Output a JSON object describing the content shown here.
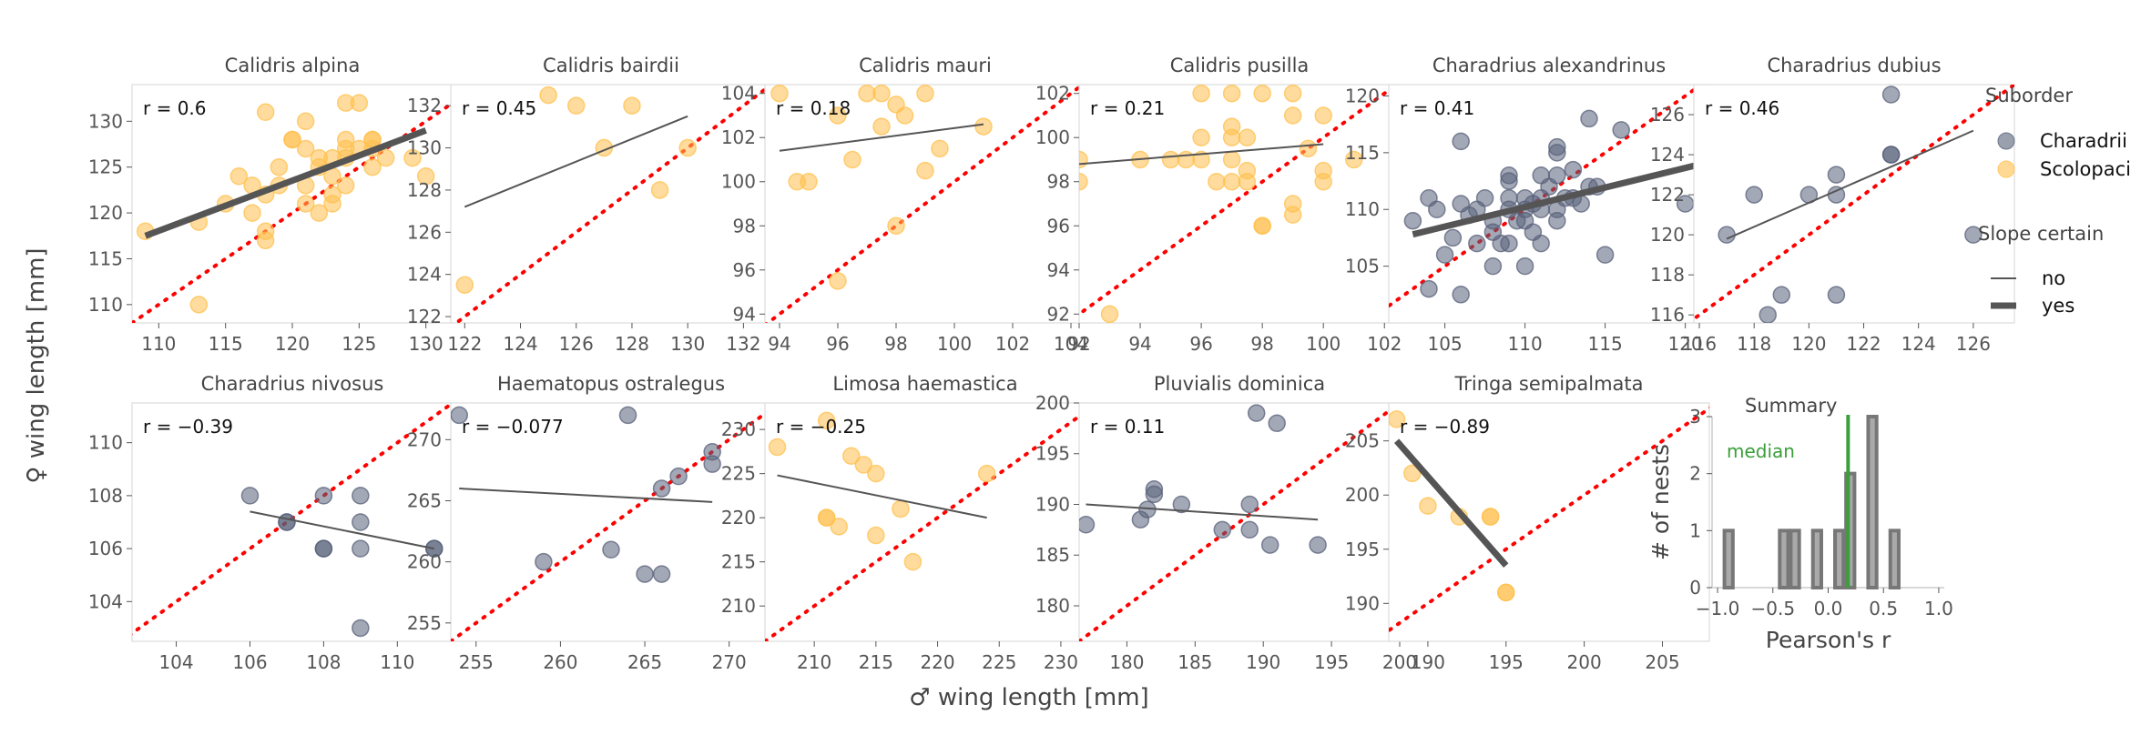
{
  "figure": {
    "ylabel": "♀ wing length [mm]",
    "xlabel": "♂ wing length [mm]"
  },
  "legend": {
    "suborder_title": "Suborder",
    "suborder_items": [
      {
        "label": "Charadrii",
        "color": "#58607A"
      },
      {
        "label": "Scolopaci",
        "color": "#FFC04D"
      }
    ],
    "slope_title": "Slope certain",
    "slope_items": [
      {
        "label": "no",
        "thick": false
      },
      {
        "label": "yes",
        "thick": true
      }
    ]
  },
  "colors": {
    "Charadrii": "#58607A",
    "Scolopaci": "#FFC04D",
    "identity": "#FF0000",
    "fit": "#555555",
    "median": "#3A9E3A",
    "hist_face": "#AAAAAA",
    "hist_edge": "#777777"
  },
  "chart_data": [
    {
      "type": "scatter",
      "title": "Calidris alpina",
      "r_label": "r = 0.6",
      "suborder": "Scolopaci",
      "slope_certain": true,
      "xlim": [
        108,
        132
      ],
      "ylim": [
        108,
        134
      ],
      "xticks": [
        110,
        115,
        120,
        125,
        130
      ],
      "yticks": [
        110,
        115,
        120,
        125,
        130
      ],
      "points": [
        [
          109,
          118
        ],
        [
          113,
          119
        ],
        [
          113,
          110
        ],
        [
          115,
          121
        ],
        [
          116,
          124
        ],
        [
          117,
          123
        ],
        [
          117,
          120
        ],
        [
          118,
          122
        ],
        [
          118,
          118
        ],
        [
          118,
          117
        ],
        [
          118,
          131
        ],
        [
          119,
          125
        ],
        [
          119,
          123
        ],
        [
          120,
          128
        ],
        [
          120,
          128
        ],
        [
          121,
          127
        ],
        [
          121,
          130
        ],
        [
          121,
          123
        ],
        [
          121,
          121
        ],
        [
          122,
          126
        ],
        [
          122,
          125
        ],
        [
          122,
          120
        ],
        [
          123,
          126
        ],
        [
          123,
          124
        ],
        [
          123,
          122
        ],
        [
          123,
          121
        ],
        [
          124,
          132
        ],
        [
          124,
          128
        ],
        [
          124,
          127
        ],
        [
          124,
          126
        ],
        [
          124,
          123
        ],
        [
          125,
          132
        ],
        [
          125,
          127
        ],
        [
          126,
          128
        ],
        [
          126,
          128
        ],
        [
          126,
          127
        ],
        [
          126,
          125
        ],
        [
          127,
          126
        ],
        [
          129,
          126
        ],
        [
          130,
          124
        ]
      ],
      "fit": [
        [
          109,
          117.5
        ],
        [
          130,
          129
        ]
      ]
    },
    {
      "type": "scatter",
      "title": "Calidris bairdii",
      "r_label": "r = 0.45",
      "suborder": "Scolopaci",
      "slope_certain": false,
      "xlim": [
        121.5,
        133
      ],
      "ylim": [
        121.7,
        133
      ],
      "xticks": [
        122,
        124,
        126,
        128,
        130,
        132
      ],
      "yticks": [
        122,
        124,
        126,
        128,
        130,
        132
      ],
      "points": [
        [
          122,
          123.5
        ],
        [
          125,
          132.5
        ],
        [
          126,
          132
        ],
        [
          127,
          130
        ],
        [
          128,
          132
        ],
        [
          129,
          128
        ],
        [
          130,
          130
        ]
      ],
      "fit": [
        [
          122,
          127.2
        ],
        [
          130,
          131.5
        ]
      ]
    },
    {
      "type": "scatter",
      "title": "Calidris mauri",
      "r_label": "r = 0.18",
      "suborder": "Scolopaci",
      "slope_certain": false,
      "xlim": [
        93.5,
        104.5
      ],
      "ylim": [
        93.6,
        104.4
      ],
      "xticks": [
        94,
        96,
        98,
        100,
        102,
        104
      ],
      "yticks": [
        94,
        96,
        98,
        100,
        102,
        104
      ],
      "points": [
        [
          94,
          104
        ],
        [
          94.6,
          100
        ],
        [
          95,
          100
        ],
        [
          96,
          95.5
        ],
        [
          96,
          103
        ],
        [
          96.5,
          101
        ],
        [
          97,
          104
        ],
        [
          97.5,
          102.5
        ],
        [
          97.5,
          104
        ],
        [
          98,
          98
        ],
        [
          98,
          103.5
        ],
        [
          98.3,
          103
        ],
        [
          99,
          100.5
        ],
        [
          99,
          104
        ],
        [
          99.5,
          101.5
        ],
        [
          101,
          102.5
        ]
      ],
      "fit": [
        [
          94,
          101.4
        ],
        [
          101,
          102.6
        ]
      ]
    },
    {
      "type": "scatter",
      "title": "Calidris pusilla",
      "r_label": "r = 0.21",
      "suborder": "Scolopaci",
      "slope_certain": false,
      "xlim": [
        92,
        102.5
      ],
      "ylim": [
        91.6,
        102.4
      ],
      "xticks": [
        92,
        94,
        96,
        98,
        100,
        102
      ],
      "yticks": [
        92,
        94,
        96,
        98,
        100,
        102
      ],
      "points": [
        [
          92,
          99
        ],
        [
          92,
          98
        ],
        [
          93,
          92
        ],
        [
          94,
          99
        ],
        [
          95,
          99
        ],
        [
          95.5,
          99
        ],
        [
          96,
          102
        ],
        [
          96,
          99
        ],
        [
          96,
          100
        ],
        [
          96.5,
          98
        ],
        [
          97,
          102
        ],
        [
          97,
          100.5
        ],
        [
          97,
          100
        ],
        [
          97,
          99
        ],
        [
          97,
          98
        ],
        [
          97.5,
          98.5
        ],
        [
          97.5,
          98
        ],
        [
          97.5,
          100
        ],
        [
          98,
          102
        ],
        [
          98,
          96
        ],
        [
          98,
          96
        ],
        [
          99,
          102
        ],
        [
          99,
          97
        ],
        [
          99,
          96.5
        ],
        [
          99,
          101
        ],
        [
          99.5,
          99.5
        ],
        [
          100,
          101
        ],
        [
          100,
          98.5
        ],
        [
          100,
          98
        ],
        [
          101,
          99
        ]
      ],
      "fit": [
        [
          92,
          98.8
        ],
        [
          100,
          99.7
        ]
      ]
    },
    {
      "type": "scatter",
      "title": "Charadrius alexandrinus",
      "r_label": "r = 0.41",
      "suborder": "Charadrii",
      "slope_certain": true,
      "xlim": [
        101.5,
        121.5
      ],
      "ylim": [
        100,
        121
      ],
      "xticks": [
        105,
        110,
        115,
        120
      ],
      "yticks": [
        105,
        110,
        115,
        120
      ],
      "points": [
        [
          103,
          109
        ],
        [
          104,
          111
        ],
        [
          104,
          103
        ],
        [
          104.5,
          110
        ],
        [
          105,
          106
        ],
        [
          105.5,
          107.5
        ],
        [
          106,
          116
        ],
        [
          106,
          102.5
        ],
        [
          106,
          110.5
        ],
        [
          106.5,
          109.5
        ],
        [
          107,
          110
        ],
        [
          107,
          107
        ],
        [
          107.5,
          111
        ],
        [
          108,
          109
        ],
        [
          108,
          108
        ],
        [
          108,
          105
        ],
        [
          108.5,
          107
        ],
        [
          109,
          113
        ],
        [
          109,
          112.5
        ],
        [
          109,
          111
        ],
        [
          109,
          110
        ],
        [
          109,
          107
        ],
        [
          109.5,
          109
        ],
        [
          110,
          111
        ],
        [
          110,
          110
        ],
        [
          110,
          109
        ],
        [
          110,
          105
        ],
        [
          110.5,
          110.5
        ],
        [
          110.5,
          108
        ],
        [
          111,
          113
        ],
        [
          111,
          111
        ],
        [
          111,
          110
        ],
        [
          111,
          107
        ],
        [
          111.5,
          112
        ],
        [
          112,
          115.5
        ],
        [
          112,
          115
        ],
        [
          112,
          113
        ],
        [
          112,
          110
        ],
        [
          112,
          109
        ],
        [
          112.5,
          111
        ],
        [
          113,
          113.5
        ],
        [
          113,
          111
        ],
        [
          113.5,
          110.5
        ],
        [
          114,
          118
        ],
        [
          114,
          112
        ],
        [
          114.5,
          112
        ],
        [
          115,
          106
        ],
        [
          116,
          117
        ],
        [
          120,
          110.5
        ]
      ],
      "fit": [
        [
          103,
          107.8
        ],
        [
          121,
          114
        ]
      ]
    },
    {
      "type": "scatter",
      "title": "Charadrius dubius",
      "r_label": "r = 0.46",
      "suborder": "Charadrii",
      "slope_certain": false,
      "xlim": [
        115.8,
        127.5
      ],
      "ylim": [
        115.6,
        127.5
      ],
      "xticks": [
        116,
        118,
        120,
        122,
        124,
        126
      ],
      "yticks": [
        116,
        118,
        120,
        122,
        124,
        126
      ],
      "points": [
        [
          117,
          120
        ],
        [
          118,
          122
        ],
        [
          118.5,
          116
        ],
        [
          119,
          117
        ],
        [
          120,
          122
        ],
        [
          121,
          123
        ],
        [
          121,
          122
        ],
        [
          121,
          117
        ],
        [
          123,
          127
        ],
        [
          123,
          124
        ],
        [
          123,
          124
        ],
        [
          126,
          120
        ]
      ],
      "fit": [
        [
          117,
          119.8
        ],
        [
          126,
          125.2
        ]
      ]
    },
    {
      "type": "scatter",
      "title": "Charadrius nivosus",
      "r_label": "r = −0.39",
      "suborder": "Charadrii",
      "slope_certain": false,
      "xlim": [
        102.8,
        111.5
      ],
      "ylim": [
        102.5,
        111.5
      ],
      "xticks": [
        104,
        106,
        108,
        110
      ],
      "yticks": [
        104,
        106,
        108,
        110
      ],
      "points": [
        [
          106,
          108
        ],
        [
          107,
          107
        ],
        [
          107,
          107
        ],
        [
          108,
          108
        ],
        [
          108,
          106
        ],
        [
          108,
          106
        ],
        [
          109,
          108
        ],
        [
          109,
          107
        ],
        [
          109,
          106
        ],
        [
          109,
          103
        ],
        [
          111,
          106
        ],
        [
          111,
          106
        ]
      ],
      "fit": [
        [
          106,
          107.4
        ],
        [
          111,
          106
        ]
      ]
    },
    {
      "type": "scatter",
      "title": "Haematopus ostralegus",
      "r_label": "r = −0.077",
      "suborder": "Charadrii",
      "slope_certain": false,
      "xlim": [
        253.5,
        272.5
      ],
      "ylim": [
        253.5,
        273
      ],
      "xticks": [
        255,
        260,
        265,
        270
      ],
      "yticks": [
        255,
        260,
        265,
        270
      ],
      "points": [
        [
          254,
          272
        ],
        [
          259,
          260
        ],
        [
          263,
          261
        ],
        [
          264,
          272
        ],
        [
          265,
          259
        ],
        [
          266,
          259
        ],
        [
          266,
          266
        ],
        [
          267,
          267
        ],
        [
          269,
          269
        ],
        [
          269,
          268
        ]
      ],
      "fit": [
        [
          254,
          266
        ],
        [
          269,
          264.9
        ]
      ]
    },
    {
      "type": "scatter",
      "title": "Limosa haemastica",
      "r_label": "r = −0.25",
      "suborder": "Scolopaci",
      "slope_certain": false,
      "xlim": [
        206,
        232
      ],
      "ylim": [
        206,
        233
      ],
      "xticks": [
        210,
        215,
        220,
        225,
        230
      ],
      "yticks": [
        210,
        215,
        220,
        225,
        230
      ],
      "points": [
        [
          207,
          228
        ],
        [
          211,
          231
        ],
        [
          211,
          220
        ],
        [
          211,
          220
        ],
        [
          212,
          219
        ],
        [
          213,
          227
        ],
        [
          214,
          226
        ],
        [
          215,
          225
        ],
        [
          215,
          218
        ],
        [
          217,
          221
        ],
        [
          218,
          215
        ],
        [
          224,
          225
        ]
      ],
      "fit": [
        [
          207,
          224.8
        ],
        [
          224,
          220
        ]
      ]
    },
    {
      "type": "scatter",
      "title": "Pluvialis dominica",
      "r_label": "r = 0.11",
      "suborder": "Charadrii",
      "slope_certain": false,
      "xlim": [
        176.5,
        200
      ],
      "ylim": [
        176.5,
        200
      ],
      "xticks": [
        180,
        185,
        190,
        195,
        200
      ],
      "yticks": [
        180,
        185,
        190,
        195,
        200
      ],
      "points": [
        [
          177,
          188
        ],
        [
          181,
          188.5
        ],
        [
          181.5,
          189.5
        ],
        [
          182,
          191
        ],
        [
          182,
          191.5
        ],
        [
          184,
          190
        ],
        [
          187,
          187.5
        ],
        [
          189,
          190
        ],
        [
          189,
          187.5
        ],
        [
          189.5,
          199
        ],
        [
          190.5,
          186
        ],
        [
          191,
          198
        ],
        [
          194,
          186
        ]
      ],
      "fit": [
        [
          177,
          190
        ],
        [
          194,
          188.5
        ]
      ]
    },
    {
      "type": "scatter",
      "title": "Tringa semipalmata",
      "r_label": "r = −0.89",
      "suborder": "Scolopaci",
      "slope_certain": true,
      "xlim": [
        187.5,
        208
      ],
      "ylim": [
        186.5,
        208.5
      ],
      "xticks": [
        190,
        195,
        200,
        205
      ],
      "yticks": [
        190,
        195,
        200,
        205
      ],
      "points": [
        [
          188,
          207
        ],
        [
          189,
          202
        ],
        [
          190,
          199
        ],
        [
          192,
          198
        ],
        [
          194,
          198
        ],
        [
          194,
          198
        ],
        [
          195,
          191
        ],
        [
          195,
          191
        ]
      ],
      "fit": [
        [
          188,
          205
        ],
        [
          195,
          193.5
        ]
      ]
    },
    {
      "type": "bar",
      "title": "Summary",
      "xlabel": "Pearson's r",
      "ylabel": "# of nests",
      "xlim": [
        -1.05,
        1.05
      ],
      "ylim": [
        0,
        3
      ],
      "xticks": [
        -1.0,
        -0.5,
        0.0,
        0.5,
        1.0
      ],
      "xtick_labels": [
        "−1.0",
        "−0.5",
        "0.0",
        "0.5",
        "1.0"
      ],
      "yticks": [
        0,
        1,
        2,
        3
      ],
      "bins": [
        [
          -0.9,
          1
        ],
        [
          -0.4,
          1
        ],
        [
          -0.3,
          1
        ],
        [
          -0.1,
          1
        ],
        [
          0.1,
          1
        ],
        [
          0.2,
          2
        ],
        [
          0.4,
          3
        ],
        [
          0.6,
          1
        ]
      ],
      "bin_width": 0.1,
      "median": 0.18,
      "median_label": "median"
    }
  ]
}
